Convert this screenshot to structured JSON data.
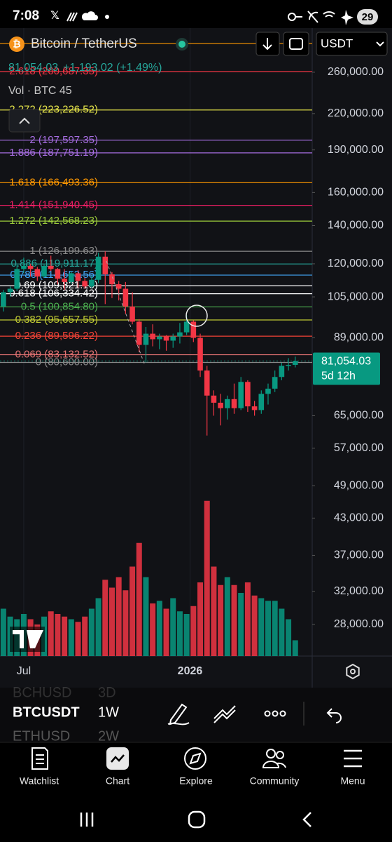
{
  "status_bar": {
    "time": "7:08",
    "battery": "29"
  },
  "header": {
    "symbol": "Bitcoin / TetherUS",
    "price": "81,054.03",
    "change": "+1,193.02 (+1.49%)",
    "volume_label": "Vol · BTC 45",
    "currency": "USDT"
  },
  "chart_data": {
    "type": "candlestick",
    "yscale": "log",
    "ylim": [
      24640,
      310700
    ],
    "yticks": [
      {
        "value": 260000,
        "label": "260,000.00"
      },
      {
        "value": 220000,
        "label": "220,000.00"
      },
      {
        "value": 190000,
        "label": "190,000.00"
      },
      {
        "value": 160000,
        "label": "160,000.00"
      },
      {
        "value": 140000,
        "label": "140,000.00"
      },
      {
        "value": 120000,
        "label": "120,000.00"
      },
      {
        "value": 105000,
        "label": "105,000.00"
      },
      {
        "value": 89000,
        "label": "89,000.00"
      },
      {
        "value": 65000,
        "label": "65,000.00"
      },
      {
        "value": 57000,
        "label": "57,000.00"
      },
      {
        "value": 49000,
        "label": "49,000.00"
      },
      {
        "value": 43000,
        "label": "43,000.00"
      },
      {
        "value": 37000,
        "label": "37,000.00"
      },
      {
        "value": 32000,
        "label": "32,000.00"
      },
      {
        "value": 28000,
        "label": "28,000.00"
      }
    ],
    "xlim": [
      -0.5,
      45.5
    ],
    "xticks": [
      {
        "value": 3,
        "label": "Jul"
      },
      {
        "value": 27.5,
        "label": "2026"
      }
    ],
    "up_color": "#089981",
    "down_color": "#f23645",
    "candles": [
      [
        101000,
        108000,
        99000,
        107000
      ],
      [
        107000,
        109500,
        105000,
        108500
      ],
      [
        108500,
        119500,
        107500,
        117500
      ],
      [
        117500,
        123000,
        115500,
        119000
      ],
      [
        119000,
        120000,
        114000,
        117500
      ],
      [
        117500,
        118500,
        112000,
        114000
      ],
      [
        114000,
        120000,
        113500,
        119000
      ],
      [
        119000,
        124000,
        116500,
        117500
      ],
      [
        117500,
        118000,
        110500,
        113000
      ],
      [
        113000,
        117500,
        108000,
        111500
      ],
      [
        111500,
        116500,
        110500,
        115500
      ],
      [
        115500,
        117000,
        109000,
        112000
      ],
      [
        112000,
        113500,
        108500,
        109500
      ],
      [
        109500,
        114500,
        108800,
        112500
      ],
      [
        112500,
        125500,
        111000,
        123500
      ],
      [
        123500,
        126199,
        102000,
        115000
      ],
      [
        115000,
        116000,
        104500,
        110500
      ],
      [
        110500,
        112000,
        103500,
        108500
      ],
      [
        108500,
        111500,
        98000,
        101000
      ],
      [
        101000,
        107000,
        94000,
        95000
      ],
      [
        95000,
        96000,
        84000,
        86500
      ],
      [
        86500,
        93000,
        80600,
        90500
      ],
      [
        90500,
        94000,
        86000,
        88500
      ],
      [
        88500,
        90500,
        85000,
        89500
      ],
      [
        89500,
        90000,
        84500,
        88000
      ],
      [
        88000,
        90500,
        85500,
        89500
      ],
      [
        89500,
        94500,
        87000,
        91000
      ],
      [
        91000,
        97500,
        90000,
        95000
      ],
      [
        95000,
        95500,
        87500,
        89000
      ],
      [
        89000,
        90500,
        76000,
        78000
      ],
      [
        78000,
        79500,
        60000,
        70500
      ],
      [
        70500,
        72000,
        65000,
        68500
      ],
      [
        68500,
        71000,
        62500,
        67000
      ],
      [
        67000,
        70500,
        64000,
        69500
      ],
      [
        69500,
        74000,
        65500,
        67000
      ],
      [
        67000,
        76000,
        66500,
        74500
      ],
      [
        74500,
        75000,
        66000,
        67500
      ],
      [
        67500,
        69000,
        65000,
        66500
      ],
      [
        66500,
        72000,
        65500,
        71000
      ],
      [
        71000,
        74000,
        68000,
        72500
      ],
      [
        72500,
        78000,
        71500,
        76000
      ],
      [
        76000,
        80500,
        75000,
        79500
      ],
      [
        79500,
        82000,
        78000,
        79800
      ],
      [
        79800,
        82500,
        79000,
        81054.03
      ]
    ],
    "vlim": [
      0,
      100
    ],
    "volumes": [
      18,
      15,
      14,
      16,
      14,
      12,
      15,
      17,
      16,
      15,
      14,
      13,
      15,
      18,
      22,
      29,
      26,
      30,
      25,
      34,
      43,
      30,
      20,
      21,
      18,
      22,
      17,
      16,
      19,
      28,
      59,
      34,
      27,
      30,
      27,
      24,
      28,
      23,
      22,
      21,
      21,
      18,
      14,
      6
    ],
    "fib_levels": [
      {
        "value": 292000,
        "color": "#ff9800"
      },
      {
        "label": "2.618 (260,687.35)",
        "value": 260687.35,
        "color": "#f23645"
      },
      {
        "label": "2.272 (223,226.52)",
        "value": 223226.52,
        "color": "#e5e44a"
      },
      {
        "label": "2 (197,597.35)",
        "value": 197597.35,
        "color": "#a66de0"
      },
      {
        "label": "1.886 (187,751.19)",
        "value": 187751.19,
        "color": "#a66de0"
      },
      {
        "label": "1.618 (166,493.36)",
        "value": 166493.36,
        "color": "#ff9800"
      },
      {
        "label": "1.414 (151,940.45)",
        "value": 151940.45,
        "color": "#e91e63"
      },
      {
        "label": "1.272 (142,568.23)",
        "value": 142568.23,
        "color": "#9ccc3b"
      },
      {
        "label": "1 (126,199.63)",
        "value": 126199.63,
        "color": "#8a8a8a"
      },
      {
        "label": "0.886 (119,911.17)",
        "value": 119911.17,
        "color": "#26a69a"
      },
      {
        "label": "0.786 (114,653.56)",
        "value": 114653.56,
        "color": "#42a5f5"
      },
      {
        "label": "0.69 (109,821.16)",
        "value": 109821.16,
        "color": "#ffffff"
      },
      {
        "label": "0.618 (106,334.42)",
        "value": 106334.42,
        "color": "#ffffff"
      },
      {
        "label": "0.5 (100,854.80)",
        "value": 100854.8,
        "color": "#4caf50"
      },
      {
        "label": "0.382 (95,657.55)",
        "value": 95657.55,
        "color": "#c0ca33"
      },
      {
        "label": "0.236 (89,596.22)",
        "value": 89596.22,
        "color": "#f44336"
      },
      {
        "label": "0.069 (83,132.52)",
        "value": 83132.52,
        "color": "#e57373"
      },
      {
        "label": "0 (80,600.00)",
        "value": 80600.0,
        "color": "#8a8a8a"
      }
    ],
    "last_price": {
      "value": 81054.03,
      "label": "81,054.03"
    },
    "countdown": "5d 12h"
  },
  "symbols": [
    {
      "symbol": "BCHUSD",
      "interval": "3D"
    },
    {
      "symbol": "BTCUSDT",
      "interval": "1W"
    },
    {
      "symbol": "ETHUSD",
      "interval": "2W"
    }
  ],
  "nav": [
    "Watchlist",
    "Chart",
    "Explore",
    "Community",
    "Menu"
  ]
}
